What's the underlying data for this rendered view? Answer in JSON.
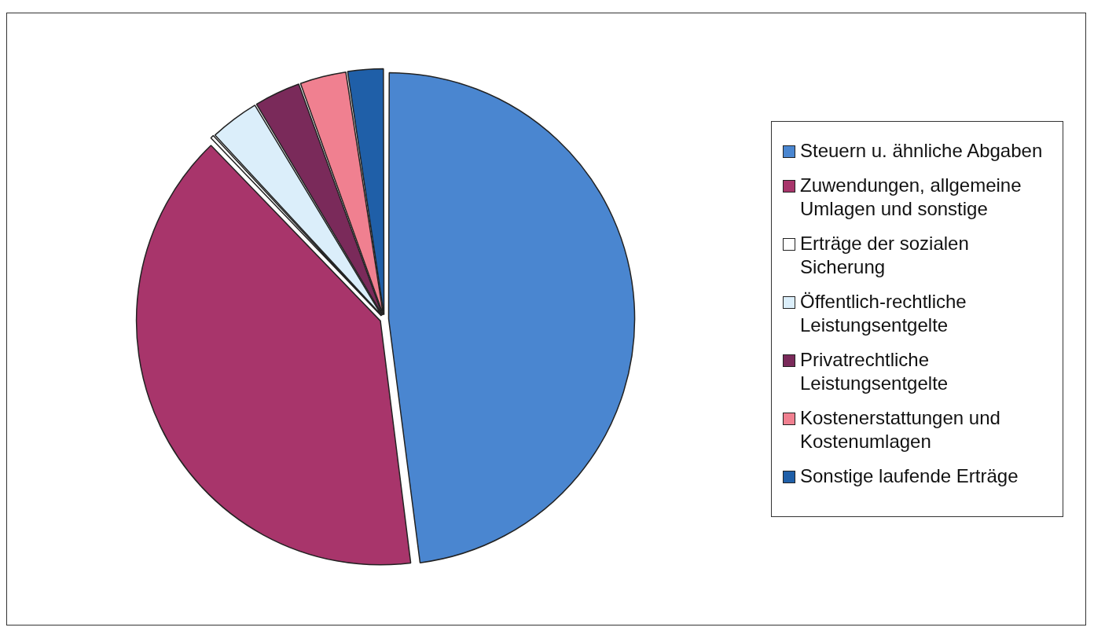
{
  "chart_data": {
    "type": "pie",
    "legend": "right",
    "categories": [
      "Steuern u. ähnliche Abgaben",
      "Zuwendungen, allgemeine Umlagen und sonstige",
      "Erträge der sozialen Sicherung",
      "Öffentlich-rechtliche Leistungsentgelte",
      "Privatrechtliche Leistungsentgelte",
      "Kostenerstattungen und Kostenumlagen",
      "Sonstige laufende Erträge"
    ],
    "values": [
      48,
      39.8,
      0.3,
      3.3,
      3.1,
      3.1,
      2.4
    ],
    "colors": [
      "#4a86d0",
      "#a8356b",
      "#ffffff",
      "#dbeefa",
      "#7a2a5a",
      "#f08090",
      "#1f5fa8"
    ]
  }
}
